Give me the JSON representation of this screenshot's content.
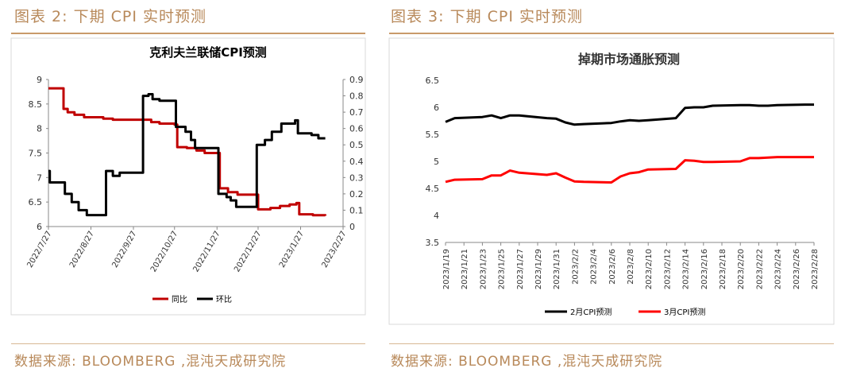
{
  "left": {
    "figure_label": "图表 2:",
    "heading": "下期 CPI 实时预测",
    "source": "数据来源: BLOOMBERG ,混沌天成研究院"
  },
  "right": {
    "figure_label": "图表 3:",
    "heading": "下期 CPI 实时预测",
    "source": "数据来源: BLOOMBERG ,混沌天成研究院"
  },
  "colors": {
    "black": "#000000",
    "red": "#c00000",
    "red_bright": "#ff0000",
    "accent": "#b8895a"
  },
  "chart_data": [
    {
      "type": "line",
      "title": "克利夫兰联储CPI预测",
      "x_type": "date",
      "x_range": [
        "2022-07-27",
        "2023-02-27"
      ],
      "x_ticks": [
        "2022/7/27",
        "2022/8/27",
        "2022/9/27",
        "2022/10/27",
        "2022/11/27",
        "2022/12/27",
        "2023/1/27",
        "2023/2/27"
      ],
      "ylim": [
        6,
        9
      ],
      "y_ticks": [
        "6",
        "6.5",
        "7",
        "7.5",
        "8",
        "8.5",
        "9"
      ],
      "y2lim": [
        0,
        0.9
      ],
      "y2_ticks": [
        "0",
        "0.1",
        "0.2",
        "0.3",
        "0.4",
        "0.5",
        "0.6",
        "0.7",
        "0.8",
        "0.9"
      ],
      "grid": false,
      "legend_position": "bottom",
      "series": [
        {
          "name": "同比",
          "axis": "left",
          "color": "#c00000",
          "points": [
            [
              "2022-07-27",
              8.82
            ],
            [
              "2022-08-06",
              8.82
            ],
            [
              "2022-08-07",
              8.4
            ],
            [
              "2022-08-10",
              8.33
            ],
            [
              "2022-08-15",
              8.28
            ],
            [
              "2022-08-22",
              8.23
            ],
            [
              "2022-09-05",
              8.2
            ],
            [
              "2022-09-12",
              8.18
            ],
            [
              "2022-10-10",
              8.13
            ],
            [
              "2022-10-16",
              8.1
            ],
            [
              "2022-10-27",
              8.08
            ],
            [
              "2022-10-29",
              7.62
            ],
            [
              "2022-11-05",
              7.6
            ],
            [
              "2022-11-12",
              7.55
            ],
            [
              "2022-11-18",
              7.5
            ],
            [
              "2022-11-26",
              7.5
            ],
            [
              "2022-11-29",
              6.78
            ],
            [
              "2022-12-05",
              6.7
            ],
            [
              "2022-12-12",
              6.65
            ],
            [
              "2022-12-26",
              6.65
            ],
            [
              "2022-12-27",
              6.35
            ],
            [
              "2023-01-05",
              6.38
            ],
            [
              "2023-01-12",
              6.42
            ],
            [
              "2023-01-19",
              6.45
            ],
            [
              "2023-01-24",
              6.48
            ],
            [
              "2023-01-26",
              6.25
            ],
            [
              "2023-02-05",
              6.23
            ],
            [
              "2023-02-14",
              6.22
            ]
          ]
        },
        {
          "name": "环比",
          "axis": "right",
          "color": "#000000",
          "points": [
            [
              "2022-07-27",
              0.34
            ],
            [
              "2022-07-28",
              0.27
            ],
            [
              "2022-08-06",
              0.27
            ],
            [
              "2022-08-08",
              0.2
            ],
            [
              "2022-08-13",
              0.15
            ],
            [
              "2022-08-18",
              0.1
            ],
            [
              "2022-08-24",
              0.07
            ],
            [
              "2022-09-05",
              0.07
            ],
            [
              "2022-09-07",
              0.34
            ],
            [
              "2022-09-12",
              0.31
            ],
            [
              "2022-09-17",
              0.33
            ],
            [
              "2022-09-28",
              0.33
            ],
            [
              "2022-10-04",
              0.8
            ],
            [
              "2022-10-08",
              0.81
            ],
            [
              "2022-10-11",
              0.78
            ],
            [
              "2022-10-16",
              0.77
            ],
            [
              "2022-10-26",
              0.77
            ],
            [
              "2022-10-28",
              0.61
            ],
            [
              "2022-11-04",
              0.58
            ],
            [
              "2022-11-08",
              0.53
            ],
            [
              "2022-11-11",
              0.48
            ],
            [
              "2022-11-25",
              0.48
            ],
            [
              "2022-11-28",
              0.2
            ],
            [
              "2022-12-04",
              0.18
            ],
            [
              "2022-12-07",
              0.16
            ],
            [
              "2022-12-11",
              0.12
            ],
            [
              "2022-12-24",
              0.12
            ],
            [
              "2022-12-26",
              0.5
            ],
            [
              "2023-01-01",
              0.53
            ],
            [
              "2023-01-06",
              0.58
            ],
            [
              "2023-01-13",
              0.63
            ],
            [
              "2023-01-23",
              0.65
            ],
            [
              "2023-01-25",
              0.57
            ],
            [
              "2023-02-04",
              0.56
            ],
            [
              "2023-02-09",
              0.54
            ],
            [
              "2023-02-14",
              0.54
            ]
          ]
        }
      ]
    },
    {
      "type": "line",
      "title": "掉期市场通胀预测",
      "x_type": "date",
      "x_range": [
        "2023-01-19",
        "2023-02-28"
      ],
      "x_ticks": [
        "2023/1/19",
        "2023/1/21",
        "2023/1/23",
        "2023/1/25",
        "2023/1/27",
        "2023/1/29",
        "2023/1/31",
        "2023/2/2",
        "2023/2/4",
        "2023/2/6",
        "2023/2/8",
        "2023/2/10",
        "2023/2/12",
        "2023/2/14",
        "2023/2/16",
        "2023/2/18",
        "2023/2/20",
        "2023/2/22",
        "2023/2/24",
        "2023/2/26",
        "2023/2/28"
      ],
      "ylim": [
        3.5,
        6.5
      ],
      "y_ticks": [
        "3.5",
        "4",
        "4.5",
        "5",
        "5.5",
        "6",
        "6.5"
      ],
      "grid": false,
      "legend_position": "bottom",
      "series": [
        {
          "name": "2月CPI预测",
          "color": "#000000",
          "points": [
            [
              "2023-01-19",
              5.73
            ],
            [
              "2023-01-20",
              5.8
            ],
            [
              "2023-01-23",
              5.82
            ],
            [
              "2023-01-24",
              5.85
            ],
            [
              "2023-01-25",
              5.8
            ],
            [
              "2023-01-26",
              5.85
            ],
            [
              "2023-01-27",
              5.85
            ],
            [
              "2023-01-30",
              5.8
            ],
            [
              "2023-01-31",
              5.79
            ],
            [
              "2023-02-01",
              5.72
            ],
            [
              "2023-02-02",
              5.68
            ],
            [
              "2023-02-03",
              5.69
            ],
            [
              "2023-02-06",
              5.71
            ],
            [
              "2023-02-07",
              5.74
            ],
            [
              "2023-02-08",
              5.76
            ],
            [
              "2023-02-09",
              5.75
            ],
            [
              "2023-02-10",
              5.76
            ],
            [
              "2023-02-13",
              5.8
            ],
            [
              "2023-02-14",
              5.99
            ],
            [
              "2023-02-15",
              6.0
            ],
            [
              "2023-02-16",
              6.0
            ],
            [
              "2023-02-17",
              6.03
            ],
            [
              "2023-02-20",
              6.04
            ],
            [
              "2023-02-21",
              6.04
            ],
            [
              "2023-02-22",
              6.03
            ],
            [
              "2023-02-23",
              6.03
            ],
            [
              "2023-02-24",
              6.04
            ],
            [
              "2023-02-27",
              6.05
            ],
            [
              "2023-02-28",
              6.05
            ]
          ]
        },
        {
          "name": "3月CPI预测",
          "color": "#ff0000",
          "points": [
            [
              "2023-01-19",
              4.62
            ],
            [
              "2023-01-20",
              4.66
            ],
            [
              "2023-01-23",
              4.67
            ],
            [
              "2023-01-24",
              4.74
            ],
            [
              "2023-01-25",
              4.74
            ],
            [
              "2023-01-26",
              4.83
            ],
            [
              "2023-01-27",
              4.79
            ],
            [
              "2023-01-30",
              4.75
            ],
            [
              "2023-01-31",
              4.78
            ],
            [
              "2023-02-01",
              4.7
            ],
            [
              "2023-02-02",
              4.63
            ],
            [
              "2023-02-03",
              4.62
            ],
            [
              "2023-02-06",
              4.61
            ],
            [
              "2023-02-07",
              4.72
            ],
            [
              "2023-02-08",
              4.78
            ],
            [
              "2023-02-09",
              4.8
            ],
            [
              "2023-02-10",
              4.85
            ],
            [
              "2023-02-13",
              4.86
            ],
            [
              "2023-02-14",
              5.02
            ],
            [
              "2023-02-15",
              5.01
            ],
            [
              "2023-02-16",
              4.99
            ],
            [
              "2023-02-17",
              4.99
            ],
            [
              "2023-02-20",
              5.0
            ],
            [
              "2023-02-21",
              5.06
            ],
            [
              "2023-02-22",
              5.06
            ],
            [
              "2023-02-23",
              5.07
            ],
            [
              "2023-02-24",
              5.08
            ],
            [
              "2023-02-27",
              5.08
            ],
            [
              "2023-02-28",
              5.08
            ]
          ]
        }
      ]
    }
  ]
}
